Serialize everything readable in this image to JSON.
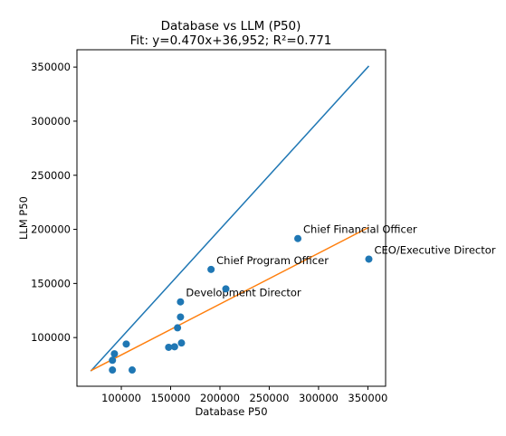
{
  "chart_data": {
    "type": "scatter",
    "title": "Database vs LLM (P50)",
    "subtitle": "Fit: y=0.470x+36,952; R²=0.771",
    "xlabel": "Database P50",
    "ylabel": "LLM P50",
    "xlim": [
      55000,
      368000
    ],
    "ylim": [
      55000,
      366000
    ],
    "xticks": [
      100000,
      150000,
      200000,
      250000,
      300000,
      350000
    ],
    "yticks": [
      100000,
      150000,
      200000,
      250000,
      300000,
      350000
    ],
    "grid": false,
    "colors": {
      "points": "#1f77b4",
      "identity": "#1f77b4",
      "fit": "#ff7f0e"
    },
    "points": [
      {
        "x": 91000,
        "y": 79000,
        "label": ""
      },
      {
        "x": 91000,
        "y": 70000,
        "label": ""
      },
      {
        "x": 93000,
        "y": 85000,
        "label": ""
      },
      {
        "x": 105000,
        "y": 94000,
        "label": ""
      },
      {
        "x": 111000,
        "y": 70000,
        "label": ""
      },
      {
        "x": 148000,
        "y": 91000,
        "label": ""
      },
      {
        "x": 154000,
        "y": 91500,
        "label": ""
      },
      {
        "x": 157000,
        "y": 109000,
        "label": ""
      },
      {
        "x": 160000,
        "y": 119000,
        "label": ""
      },
      {
        "x": 161000,
        "y": 95000,
        "label": ""
      },
      {
        "x": 160000,
        "y": 133000,
        "label": "Development Director"
      },
      {
        "x": 191000,
        "y": 163000,
        "label": "Chief Program Officer"
      },
      {
        "x": 206000,
        "y": 145000,
        "label": ""
      },
      {
        "x": 279000,
        "y": 191500,
        "label": "Chief Financial Officer"
      },
      {
        "x": 351000,
        "y": 172500,
        "label": "CEO/Executive Director"
      }
    ],
    "identity_line": {
      "x": [
        69000,
        351000
      ],
      "y": [
        69000,
        351000
      ]
    },
    "fit_line": {
      "slope": 0.47,
      "intercept": 36952,
      "x": [
        69000,
        351000
      ]
    }
  }
}
